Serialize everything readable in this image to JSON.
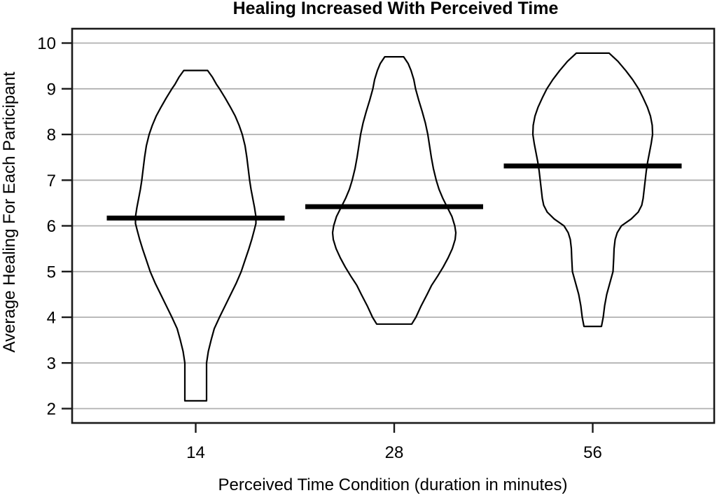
{
  "chart_data": {
    "type": "violin",
    "title": "Healing Increased With Perceived Time",
    "xlabel": "Perceived Time Condition (duration in minutes)",
    "ylabel": "Average Healing For Each Participant",
    "ylim": [
      2,
      10
    ],
    "y_ticks": [
      2,
      3,
      4,
      5,
      6,
      7,
      8,
      9,
      10
    ],
    "categories": [
      "14",
      "28",
      "56"
    ],
    "grid": "light horizontal gridline at every y tick",
    "legend": "none",
    "colors": {
      "outline": "#000000",
      "mean_bar": "#000000",
      "grid": "#b0b0b0",
      "frame": "#1a1a1a",
      "background": "#ffffff"
    },
    "series": [
      {
        "category": "14",
        "mean": 6.17,
        "min": 2.17,
        "max": 9.4,
        "density_profile": [
          [
            9.4,
            17
          ],
          [
            9.25,
            24
          ],
          [
            9.1,
            29.5
          ],
          [
            9.0,
            34
          ],
          [
            8.8,
            42
          ],
          [
            8.6,
            49.5
          ],
          [
            8.4,
            56.5
          ],
          [
            8.2,
            62
          ],
          [
            8.0,
            66.5
          ],
          [
            7.75,
            70.5
          ],
          [
            7.5,
            73
          ],
          [
            7.25,
            75
          ],
          [
            7.0,
            77
          ],
          [
            6.8,
            79
          ],
          [
            6.6,
            81.5
          ],
          [
            6.4,
            84
          ],
          [
            6.2,
            86
          ],
          [
            6.05,
            86
          ],
          [
            5.9,
            83.5
          ],
          [
            5.7,
            80
          ],
          [
            5.5,
            76
          ],
          [
            5.25,
            70.5
          ],
          [
            5.0,
            65
          ],
          [
            4.75,
            58
          ],
          [
            4.5,
            50
          ],
          [
            4.25,
            42
          ],
          [
            4.0,
            34
          ],
          [
            3.75,
            26.5
          ],
          [
            3.5,
            22
          ],
          [
            3.25,
            18
          ],
          [
            3.0,
            15.5
          ],
          [
            2.75,
            15.5
          ],
          [
            2.5,
            15.5
          ],
          [
            2.17,
            15.5
          ]
        ]
      },
      {
        "category": "28",
        "mean": 6.42,
        "min": 3.85,
        "max": 9.7,
        "density_profile": [
          [
            9.7,
            13.5
          ],
          [
            9.55,
            20
          ],
          [
            9.4,
            24
          ],
          [
            9.2,
            28
          ],
          [
            9.0,
            30.5
          ],
          [
            8.75,
            35
          ],
          [
            8.5,
            40
          ],
          [
            8.25,
            44.5
          ],
          [
            8.0,
            48
          ],
          [
            7.75,
            50.5
          ],
          [
            7.5,
            53
          ],
          [
            7.25,
            56
          ],
          [
            7.0,
            60
          ],
          [
            6.8,
            64
          ],
          [
            6.6,
            69.5
          ],
          [
            6.4,
            76
          ],
          [
            6.2,
            82.5
          ],
          [
            6.0,
            86.5
          ],
          [
            5.85,
            88
          ],
          [
            5.7,
            87
          ],
          [
            5.5,
            83
          ],
          [
            5.3,
            77
          ],
          [
            5.1,
            70
          ],
          [
            4.9,
            62
          ],
          [
            4.7,
            53.5
          ],
          [
            4.5,
            47
          ],
          [
            4.25,
            38.5
          ],
          [
            4.0,
            31
          ],
          [
            3.85,
            25
          ]
        ]
      },
      {
        "category": "56",
        "mean": 7.31,
        "min": 3.8,
        "max": 9.78,
        "density_profile": [
          [
            9.78,
            23.5
          ],
          [
            9.6,
            36
          ],
          [
            9.4,
            47
          ],
          [
            9.2,
            57
          ],
          [
            9.0,
            65.5
          ],
          [
            8.8,
            72
          ],
          [
            8.6,
            78
          ],
          [
            8.4,
            82.5
          ],
          [
            8.2,
            85
          ],
          [
            8.0,
            85.5
          ],
          [
            7.8,
            83.5
          ],
          [
            7.6,
            81
          ],
          [
            7.4,
            78.5
          ],
          [
            7.2,
            76.5
          ],
          [
            7.0,
            75
          ],
          [
            6.8,
            73.5
          ],
          [
            6.6,
            72
          ],
          [
            6.45,
            70
          ],
          [
            6.3,
            65
          ],
          [
            6.15,
            55
          ],
          [
            6.0,
            41
          ],
          [
            5.85,
            35
          ],
          [
            5.7,
            32
          ],
          [
            5.5,
            30.5
          ],
          [
            5.3,
            30
          ],
          [
            5.0,
            29
          ],
          [
            4.75,
            24.5
          ],
          [
            4.5,
            20
          ],
          [
            4.25,
            17
          ],
          [
            4.0,
            15
          ],
          [
            3.8,
            12.5
          ]
        ]
      }
    ]
  }
}
